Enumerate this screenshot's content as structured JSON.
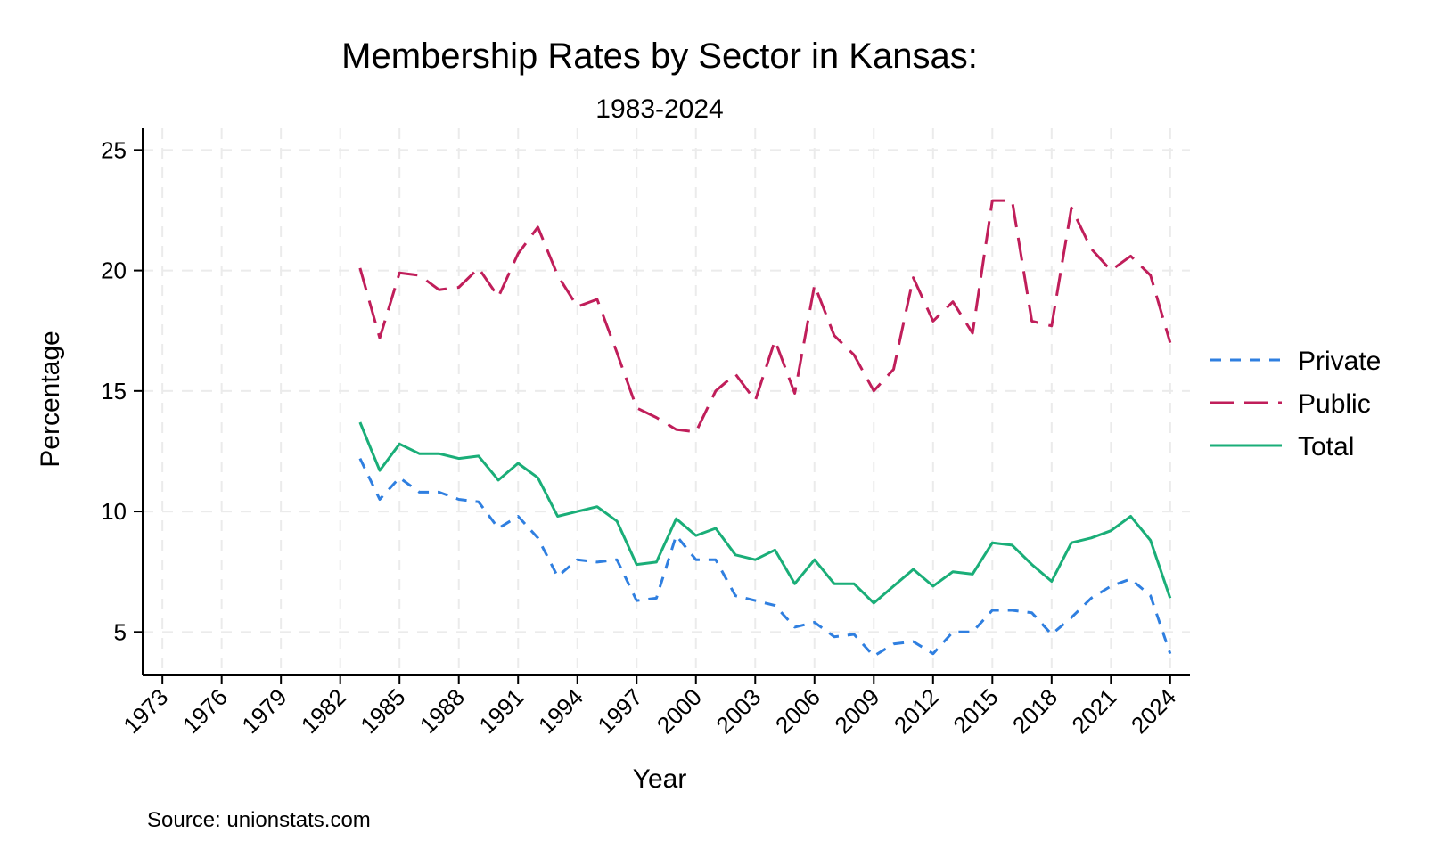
{
  "chart_data": {
    "type": "line",
    "title": "Membership Rates by Sector in Kansas:",
    "subtitle": "1983-2024",
    "xlabel": "Year",
    "ylabel": "Percentage",
    "note": "Source: unionstats.com",
    "xlim": [
      1972,
      2025
    ],
    "ylim": [
      3.2,
      25.9
    ],
    "x_ticks": [
      1973,
      1976,
      1979,
      1982,
      1985,
      1988,
      1991,
      1994,
      1997,
      2000,
      2003,
      2006,
      2009,
      2012,
      2015,
      2018,
      2021,
      2024
    ],
    "y_ticks": [
      5,
      10,
      15,
      20,
      25
    ],
    "grid": true,
    "legend_position": "right",
    "x": [
      1983,
      1984,
      1985,
      1986,
      1987,
      1988,
      1989,
      1990,
      1991,
      1992,
      1993,
      1994,
      1995,
      1996,
      1997,
      1998,
      1999,
      2000,
      2001,
      2002,
      2003,
      2004,
      2005,
      2006,
      2007,
      2008,
      2009,
      2010,
      2011,
      2012,
      2013,
      2014,
      2015,
      2016,
      2017,
      2018,
      2019,
      2020,
      2021,
      2022,
      2023,
      2024
    ],
    "series": [
      {
        "name": "Private",
        "color": "#2f7fe0",
        "dash": "short",
        "values": [
          12.2,
          10.5,
          11.4,
          10.8,
          10.8,
          10.5,
          10.4,
          9.3,
          9.8,
          8.9,
          7.3,
          8.0,
          7.9,
          8.0,
          6.3,
          6.4,
          9.0,
          8.0,
          8.0,
          6.5,
          6.3,
          6.1,
          5.2,
          5.4,
          4.8,
          4.9,
          4.0,
          4.5,
          4.6,
          4.1,
          5.0,
          5.0,
          5.9,
          5.9,
          5.8,
          4.9,
          5.6,
          6.4,
          6.9,
          7.2,
          6.5,
          4.1
        ]
      },
      {
        "name": "Public",
        "color": "#c01e5a",
        "dash": "long",
        "values": [
          20.1,
          17.2,
          19.9,
          19.8,
          19.2,
          19.3,
          20.1,
          18.9,
          20.7,
          21.8,
          19.8,
          18.5,
          18.8,
          16.6,
          14.3,
          13.9,
          13.4,
          13.3,
          15.0,
          15.7,
          14.6,
          17.1,
          14.9,
          19.4,
          17.3,
          16.5,
          15.0,
          15.9,
          19.7,
          17.9,
          18.7,
          17.4,
          22.9,
          22.9,
          17.9,
          17.7,
          22.6,
          20.9,
          20.0,
          20.6,
          19.8,
          17.0
        ]
      },
      {
        "name": "Total",
        "color": "#1aae78",
        "dash": "solid",
        "values": [
          13.7,
          11.7,
          12.8,
          12.4,
          12.4,
          12.2,
          12.3,
          11.3,
          12.0,
          11.4,
          9.8,
          10.0,
          10.2,
          9.6,
          7.8,
          7.9,
          9.7,
          9.0,
          9.3,
          8.2,
          8.0,
          8.4,
          7.0,
          8.0,
          7.0,
          7.0,
          6.2,
          6.9,
          7.6,
          6.9,
          7.5,
          7.4,
          8.7,
          8.6,
          7.8,
          7.1,
          8.7,
          8.9,
          9.2,
          9.8,
          8.8,
          6.4
        ]
      }
    ]
  }
}
